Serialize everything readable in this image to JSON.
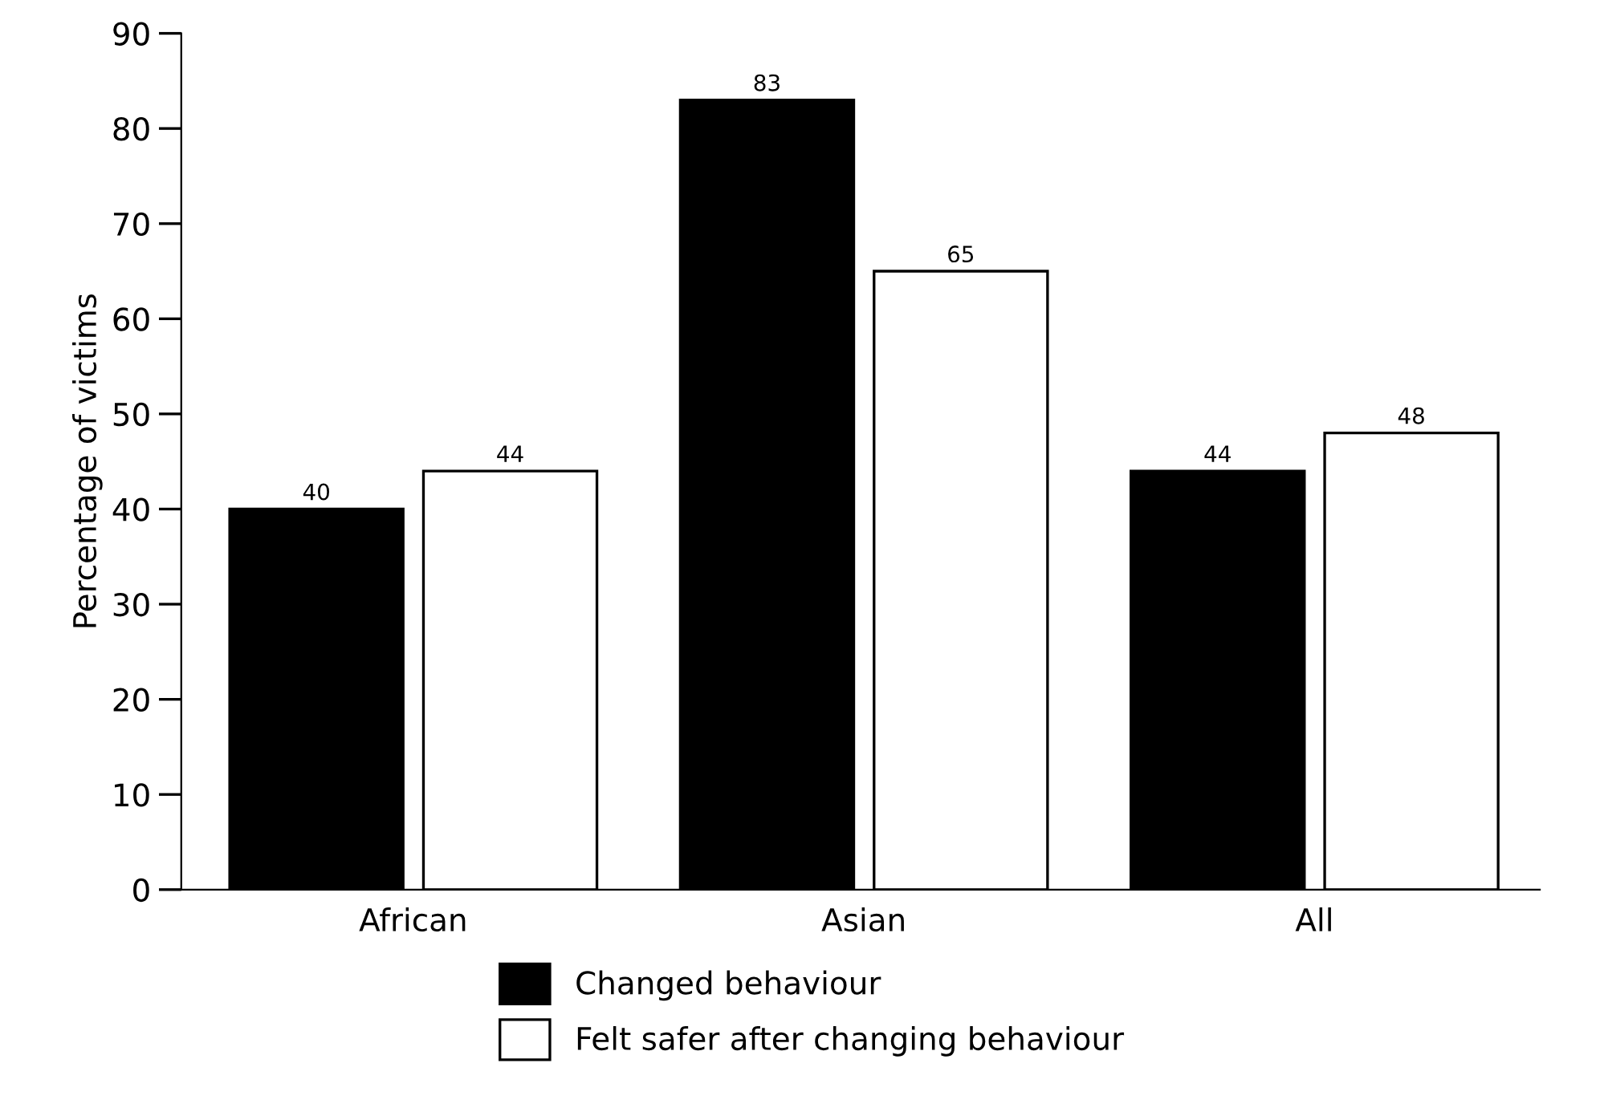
{
  "chart_data": {
    "type": "bar",
    "ylabel": "Percentage of victims",
    "categories": [
      "African",
      "Asian",
      "All"
    ],
    "series": [
      {
        "name": "Changed behaviour",
        "color": "#000000",
        "values": [
          40,
          83,
          44
        ]
      },
      {
        "name": "Felt safer after changing behaviour",
        "color": "#ffffff",
        "values": [
          44,
          65,
          48
        ]
      }
    ],
    "ylim": [
      0,
      90
    ],
    "yticks": [
      0,
      10,
      20,
      30,
      40,
      50,
      60,
      70,
      80,
      90
    ],
    "data_labels": true,
    "grid": false,
    "legend": "bottom"
  }
}
